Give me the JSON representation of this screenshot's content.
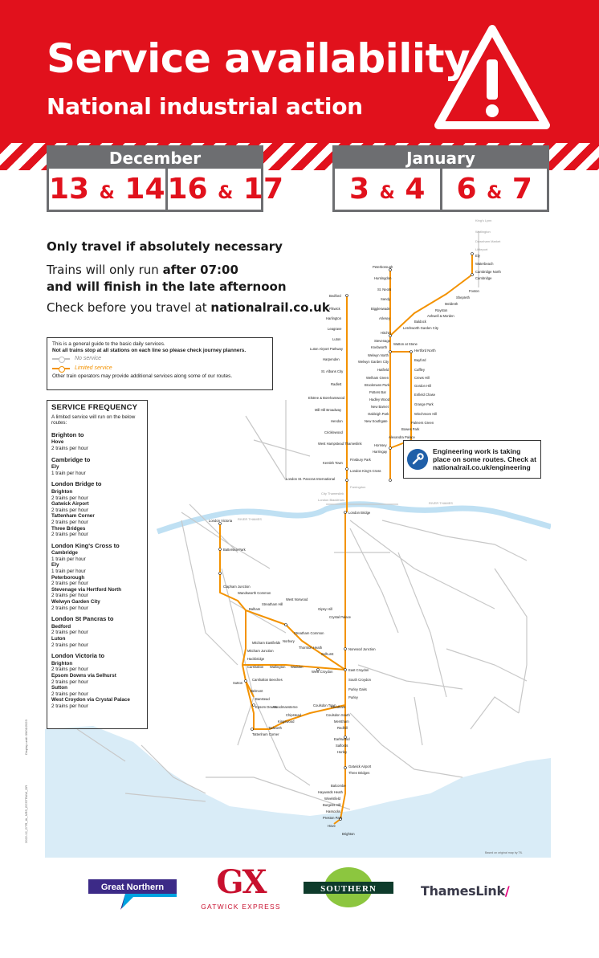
{
  "header": {
    "title": "Service availability",
    "subtitle": "National industrial action"
  },
  "dates": {
    "december": {
      "month": "December",
      "days": [
        {
          "a": "13",
          "amp": "&",
          "b": "14"
        },
        {
          "a": "16",
          "amp": "&",
          "b": "17"
        }
      ]
    },
    "january": {
      "month": "January",
      "days": [
        {
          "a": "3",
          "amp": "&",
          "b": "4"
        },
        {
          "a": "6",
          "amp": "&",
          "b": "7"
        }
      ]
    }
  },
  "advice": {
    "line1": "Only travel if absolutely necessary",
    "line2_pre": "Trains will only run ",
    "line2_bold": "after 07:00",
    "line3_bold": "and will finish in the late afternoon",
    "line4_pre": "Check before you travel at ",
    "line4_bold": "nationalrail.co.uk"
  },
  "key": {
    "line1": "This is a general guide to the basic daily services.",
    "line2": "Not all trains stop at all stations on each line so please check journey planners.",
    "no_service": "No service",
    "limited_service": "Limited service",
    "footnote": "Other train operators may provide additional services along some of our routes."
  },
  "frequency": {
    "title": "SERVICE FREQUENCY",
    "intro": "A limited service will run on the below routes:",
    "groups": [
      {
        "from": "Brighton to",
        "items": [
          {
            "dest": "Hove",
            "freq": "2 trains per hour"
          }
        ]
      },
      {
        "from": "Cambridge to",
        "items": [
          {
            "dest": "Ely",
            "freq": "1 train per hour"
          }
        ]
      },
      {
        "from": "London Bridge to",
        "items": [
          {
            "dest": "Brighton",
            "freq": "2 trains per hour"
          },
          {
            "dest": "Gatwick Airport",
            "freq": "2 trains per hour"
          },
          {
            "dest": "Tattenham Corner",
            "freq": "2 trains per hour"
          },
          {
            "dest": "Three Bridges",
            "freq": "2 trains per hour"
          }
        ]
      },
      {
        "from": "London King's Cross to",
        "items": [
          {
            "dest": "Cambridge",
            "freq": "1 train per hour"
          },
          {
            "dest": "Ely",
            "freq": "1 train per hour"
          },
          {
            "dest": "Peterborough",
            "freq": "2 trains per hour"
          },
          {
            "dest": "Stevenage via Hertford North",
            "freq": "2 trains per hour"
          },
          {
            "dest": "Welwyn Garden City",
            "freq": "2 trains per hour"
          }
        ]
      },
      {
        "from": "London St Pancras to",
        "items": [
          {
            "dest": "Bedford",
            "freq": "2 trains per hour"
          },
          {
            "dest": "Luton",
            "freq": "2 trains per hour"
          }
        ]
      },
      {
        "from": "London Victoria to",
        "items": [
          {
            "dest": "Brighton",
            "freq": "2 trains per hour"
          },
          {
            "dest": "Epsom Downs via Selhurst",
            "freq": "2 trains per hour"
          },
          {
            "dest": "Sutton",
            "freq": "2 trains per hour"
          },
          {
            "dest": "West Croydon via Crystal Palace",
            "freq": "2 trains per hour"
          }
        ]
      }
    ]
  },
  "engineering": {
    "text": "Engineering work is taking place on some routes. Check at nationalrail.co.uk/engineering"
  },
  "map": {
    "stations": {
      "kings_lynn": "King's Lynn",
      "watlington": "Watlington",
      "downham_market": "Downham Market",
      "littleport": "Littleport",
      "ely": "Ely",
      "waterbeach": "Waterbeach",
      "cambridge_north": "Cambridge North",
      "cambridge": "Cambridge",
      "foxton": "Foxton",
      "shepreth": "Shepreth",
      "meldreth": "Meldreth",
      "royston": "Royston",
      "ashwell": "Ashwell & Morden",
      "baldock": "Baldock",
      "letchworth": "Letchworth Garden City",
      "peterborough": "Peterborough",
      "huntingdon": "Huntingdon",
      "st_neots": "St. Neots",
      "sandy": "Sandy",
      "biggleswade": "Biggleswade",
      "arlesey": "Arlesey",
      "hitchin": "Hitchin",
      "stevenage": "Stevenage",
      "knebworth": "Knebworth",
      "welwyn_north": "Welwyn North",
      "welwyn_gc": "Welwyn Garden City",
      "hatfield": "Hatfield",
      "welham_green": "Welham Green",
      "brookmans_park": "Brookmans Park",
      "potters_bar": "Potters Bar",
      "hadley_wood": "Hadley Wood",
      "new_barnet": "New Barnet",
      "oakleigh_park": "Oakleigh Park",
      "new_southgate": "New Southgate",
      "watton": "Watton at Stone",
      "hertford_north": "Hertford North",
      "bayford": "Bayford",
      "cuffley": "Cuffley",
      "crews_hill": "Crews Hill",
      "gordon_hill": "Gordon Hill",
      "enfield_chase": "Enfield Chase",
      "grange_park": "Grange Park",
      "winchmore_hill": "Winchmore Hill",
      "palmers_green": "Palmers Green",
      "bowes_park": "Bowes Park",
      "alexandra_palace": "Alexandra Palace",
      "hornsey": "Hornsey",
      "harringay": "Harringay",
      "finsbury_park": "Finsbury Park",
      "london_kings_cross": "London King's Cross",
      "bedford": "Bedford",
      "flitwick": "Flitwick",
      "harlington": "Harlington",
      "leagrave": "Leagrave",
      "luton": "Luton",
      "luton_airport": "Luton Airport Parkway",
      "harpenden": "Harpenden",
      "st_albans": "St. Albans City",
      "radlett": "Radlett",
      "elstree": "Elstree & Borehamwood",
      "mill_hill": "Mill Hill Broadway",
      "hendon": "Hendon",
      "cricklewood": "Cricklewood",
      "west_hampstead": "West Hampstead Thameslink",
      "kentish_town": "Kentish Town",
      "london_st_pancras": "London St. Pancras International",
      "farringdon": "Farringdon",
      "city_thameslink": "City Thameslink",
      "london_blackfriars": "London Blackfriars",
      "london_bridge": "London Bridge",
      "london_victoria": "London Victoria",
      "battersea_park": "Battersea Park",
      "clapham_junction": "Clapham Junction",
      "wandsworth_common": "Wandsworth Common",
      "balham": "Balham",
      "streatham_hill": "Streatham Hill",
      "west_norwood": "West Norwood",
      "gipsy_hill": "Gipsy Hill",
      "crystal_palace": "Crystal Palace",
      "streatham_common": "Streatham Common",
      "norbury": "Norbury",
      "thornton_heath": "Thornton Heath",
      "selhurst": "Selhurst",
      "norwood_junction": "Norwood Junction",
      "mitcham_eastfields": "Mitcham Eastfields",
      "mitcham_junction": "Mitcham Junction",
      "hackbridge": "Hackbridge",
      "carshalton": "Carshalton",
      "wallington": "Wallington",
      "waddon": "Waddon",
      "west_croydon": "West Croydon",
      "east_croydon": "East Croydon",
      "south_croydon": "South Croydon",
      "carshalton_beeches": "Carshalton Beeches",
      "sutton": "Sutton",
      "belmont": "Belmont",
      "banstead": "Banstead",
      "epsom_downs": "Epsom Downs",
      "purley_oaks": "Purley Oaks",
      "purley": "Purley",
      "woodmansterne": "Woodmansterne",
      "coulsdon_town": "Coulsdon Town",
      "reedham": "Reedham",
      "chipstead": "Chipstead",
      "kingswood": "Kingswood",
      "tadworth": "Tadworth",
      "tattenham_corner": "Tattenham Corner",
      "coulsdon_south": "Coulsdon South",
      "merstham": "Merstham",
      "redhill": "Redhill",
      "earlswood": "Earlswood",
      "salfords": "Salfords",
      "horley": "Horley",
      "gatwick": "Gatwick Airport",
      "three_bridges": "Three Bridges",
      "balcombe": "Balcombe",
      "haywards_heath": "Haywards Heath",
      "wivelsfield": "Wivelsfield",
      "burgess_hill": "Burgess Hill",
      "hassocks": "Hassocks",
      "preston_park": "Preston Park",
      "hove": "Hove",
      "brighton": "Brighton"
    },
    "river": "RIVER THAMES"
  },
  "side_notes": {
    "note1": "Display until: 09/01/2023",
    "note2": "2022-12_GTR_IA_NRS_ECSTRAW_DR"
  },
  "credit": "Based on original map by TfL",
  "logos": {
    "great_northern": "Great Northern",
    "gx": "GX",
    "gatwick_express": "GATWICK EXPRESS",
    "southern": "SOUTHERN",
    "thameslink": "ThamesLink",
    "thameslink_slash": "/"
  },
  "colors": {
    "red": "#e1111c",
    "grey": "#6d6e71",
    "orange": "#f39200",
    "water": "#d9ecf7",
    "great_northern": "#3c2a87",
    "southern_green": "#8cc63f",
    "southern_dark": "#0e3b2b",
    "gx": "#c8102e"
  }
}
